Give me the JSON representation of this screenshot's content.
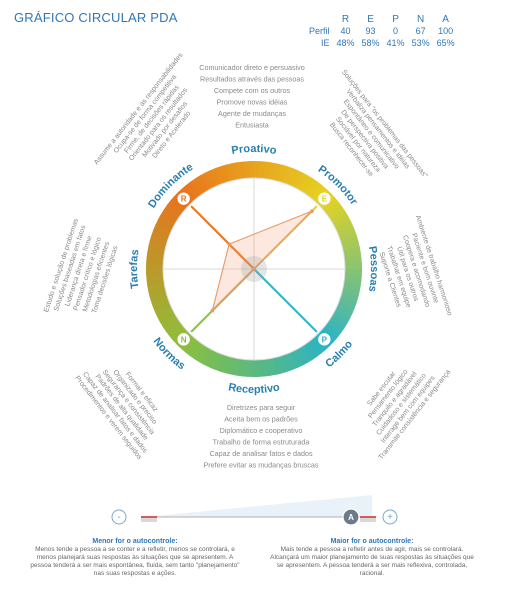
{
  "title": "GRÁFICO CIRCULAR PDA",
  "table": {
    "headers": [
      "R",
      "E",
      "P",
      "N",
      "A"
    ],
    "rows": [
      {
        "label": "Perfil",
        "values": [
          "40",
          "93",
          "0",
          "67",
          "100"
        ]
      },
      {
        "label": "IE",
        "values": [
          "48%",
          "58%",
          "41%",
          "53%",
          "65%"
        ]
      }
    ]
  },
  "chart_data": {
    "type": "radar",
    "dimensions": [
      {
        "letter": "R",
        "name": "Dominante",
        "value": 40
      },
      {
        "letter": "E",
        "name": "Promotor",
        "value": 93
      },
      {
        "letter": "P",
        "name": "Calmo",
        "value": 0
      },
      {
        "letter": "N",
        "name": "Normas",
        "value": 67
      }
    ],
    "axis_labels": {
      "top": "Proativo",
      "right": "Pessoas",
      "bottom": "Receptivo",
      "left": "Tarefas"
    },
    "colors": {
      "dominante": "#e8731c",
      "promotor": "#e6d320",
      "calmo": "#2bb3c5",
      "normas": "#8dbf3a",
      "label": "#2a7fb0"
    },
    "autocontrol": {
      "value": 100,
      "badge": "A",
      "minus": "-",
      "plus": "+"
    }
  },
  "word_groups": {
    "top": [
      "Comunicador direto e persuasivo",
      "Resultados através das pessoas",
      "Compete com os outros",
      "Promove novas idéias",
      "Agente de mudanças",
      "Entusiasta"
    ],
    "upper_right": [
      "Soluções para \"os problemas das pessoas\"",
      "Verbaliza pensamentos e idéias",
      "Espontâneo e comunicativo",
      "De perspectiva positiva",
      "Sociável por natureza",
      "Busca reconhecer-se"
    ],
    "right": [
      "Ambiente de trabalho harmonioso",
      "Paciente e bom ouvinte",
      "Coopera e acomodando",
      "Útil para os outros",
      "Trabalhar em equipe",
      "Suporte a Clientes"
    ],
    "lower_right": [
      "Sabe escutar",
      "Pensamento lógico",
      "Tranquilo e agradável",
      "Cuidadoso e sistemático",
      "Interage bem com equipes",
      "Transmite consistência e segurança"
    ],
    "bottom": [
      "Diretrizes para seguir",
      "Aceita bem os padrões",
      "Diplomático e cooperativo",
      "Trabalho de forma estruturada",
      "Capaz de analisar fatos e dados",
      "Prefere evitar as mudanças bruscas"
    ],
    "lower_left": [
      "Formal e eficaz",
      "Organizado e preciso",
      "Segurança e consistência",
      "Padrões de alta qualidade",
      "Capaz de analisar fatos e dados",
      "Procedimentos e verem seguidos"
    ],
    "left": [
      "Estudo e solução de problemas",
      "Soluções baseadas em fatos",
      "Liderança direta e firme",
      "Pensador crítico e lógico",
      "Metodologias eficientes",
      "Toma decisões lógicas"
    ],
    "upper_left": [
      "Assume a autoridade e as responsabilidades",
      "Ocupa-se de forma competitiva",
      "Firme, de decisões rápidas",
      "Orientado para os resultados",
      "Motivado por desafios",
      "Direto e Acelerado"
    ]
  },
  "footer": {
    "left": {
      "heading": "Menor for o autocontrole:",
      "text": "Menos tende a pessoa a se conter e a refletir, menos se controlará, e menos planejará suas respostas às situações que se apresentem. A pessoa tenderá a ser mais espontânea, fluida, sem tanto \"planejamento\" nas suas respostas e ações."
    },
    "right": {
      "heading": "Maior for o autocontrole:",
      "text": "Mais tende a pessoa a refletir antes de agir, mais se controlará. Alcançará um maior planejamento de suas respostas às situações que se apresentem. A pessoa tenderá a ser mais reflexiva, controlada, racional."
    }
  }
}
